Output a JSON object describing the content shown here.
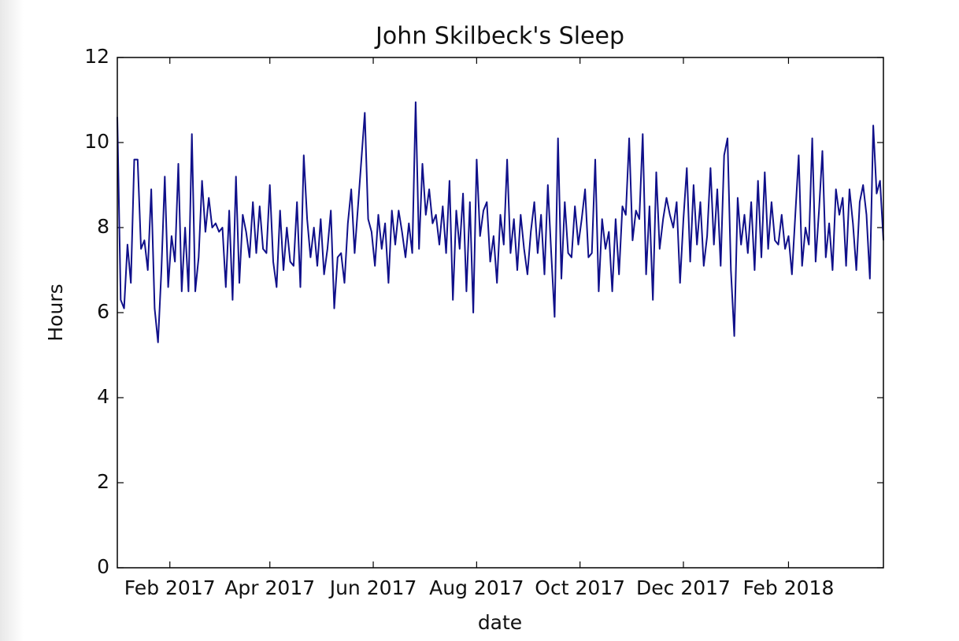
{
  "chart_data": {
    "type": "line",
    "title": "John Skilbeck's Sleep",
    "xlabel": "date",
    "ylabel": "Hours",
    "series": [
      {
        "name": "Hours",
        "color": "#10108a",
        "values": [
          10.6,
          6.3,
          6.1,
          7.6,
          6.7,
          9.6,
          9.6,
          7.5,
          7.7,
          7.0,
          8.9,
          6.1,
          5.3,
          7.0,
          9.2,
          6.6,
          7.8,
          7.2,
          9.5,
          6.5,
          8.0,
          6.5,
          10.2,
          6.5,
          7.3,
          9.1,
          7.9,
          8.7,
          8.0,
          8.1,
          7.9,
          8.0,
          6.6,
          8.4,
          6.3,
          9.2,
          6.7,
          8.3,
          7.9,
          7.3,
          8.6,
          7.4,
          8.5,
          7.5,
          7.4,
          9.0,
          7.2,
          6.6,
          8.4,
          7.0,
          8.0,
          7.2,
          7.1,
          8.6,
          6.6,
          9.7,
          8.2,
          7.3,
          8.0,
          7.1,
          8.2,
          6.9,
          7.5,
          8.4,
          6.1,
          7.3,
          7.4,
          6.7,
          8.1,
          8.9,
          7.4,
          8.5,
          9.6,
          10.7,
          8.2,
          7.9,
          7.1,
          8.3,
          7.5,
          8.1,
          6.7,
          8.4,
          7.6,
          8.4,
          7.9,
          7.3,
          8.1,
          7.4,
          10.95,
          7.5,
          9.5,
          8.3,
          8.9,
          8.1,
          8.3,
          7.6,
          8.5,
          7.4,
          9.1,
          6.3,
          8.4,
          7.5,
          8.8,
          6.5,
          8.6,
          6.0,
          9.6,
          7.8,
          8.4,
          8.6,
          7.2,
          7.8,
          6.7,
          8.3,
          7.6,
          9.6,
          7.4,
          8.2,
          7.0,
          8.3,
          7.5,
          6.9,
          7.9,
          8.6,
          7.4,
          8.3,
          6.9,
          9.0,
          7.4,
          5.9,
          10.1,
          6.8,
          8.6,
          7.4,
          7.3,
          8.5,
          7.6,
          8.2,
          8.9,
          7.3,
          7.4,
          9.6,
          6.5,
          8.2,
          7.5,
          7.9,
          6.5,
          8.2,
          6.9,
          8.5,
          8.3,
          10.1,
          7.7,
          8.4,
          8.2,
          10.2,
          6.9,
          8.5,
          6.3,
          9.3,
          7.5,
          8.2,
          8.7,
          8.3,
          8.0,
          8.6,
          6.7,
          8.2,
          9.4,
          7.2,
          9.0,
          7.6,
          8.6,
          7.1,
          7.8,
          9.4,
          7.6,
          8.9,
          7.1,
          9.7,
          10.1,
          7.0,
          5.45,
          8.7,
          7.6,
          8.3,
          7.4,
          8.6,
          7.0,
          9.1,
          7.3,
          9.3,
          7.5,
          8.6,
          7.7,
          7.6,
          8.3,
          7.5,
          7.8,
          6.9,
          8.3,
          9.7,
          7.1,
          8.0,
          7.6,
          10.1,
          7.2,
          8.4,
          9.8,
          7.3,
          8.1,
          7.0,
          8.9,
          8.3,
          8.7,
          7.1,
          8.9,
          8.1,
          7.0,
          8.6,
          9.0,
          8.3,
          6.8,
          10.4,
          8.8,
          9.1,
          7.7
        ]
      }
    ],
    "xlim": [
      0,
      226
    ],
    "xticks": [
      {
        "value": 15.5,
        "label": "Feb 2017"
      },
      {
        "value": 45,
        "label": "Apr 2017"
      },
      {
        "value": 75.5,
        "label": "Jun 2017"
      },
      {
        "value": 106,
        "label": "Aug 2017"
      },
      {
        "value": 136.5,
        "label": "Oct 2017"
      },
      {
        "value": 167,
        "label": "Dec 2017"
      },
      {
        "value": 198,
        "label": "Feb 2018"
      }
    ],
    "ylim": [
      0,
      12
    ],
    "yticks": [
      0,
      2,
      4,
      6,
      8,
      10,
      12
    ],
    "grid": false
  }
}
